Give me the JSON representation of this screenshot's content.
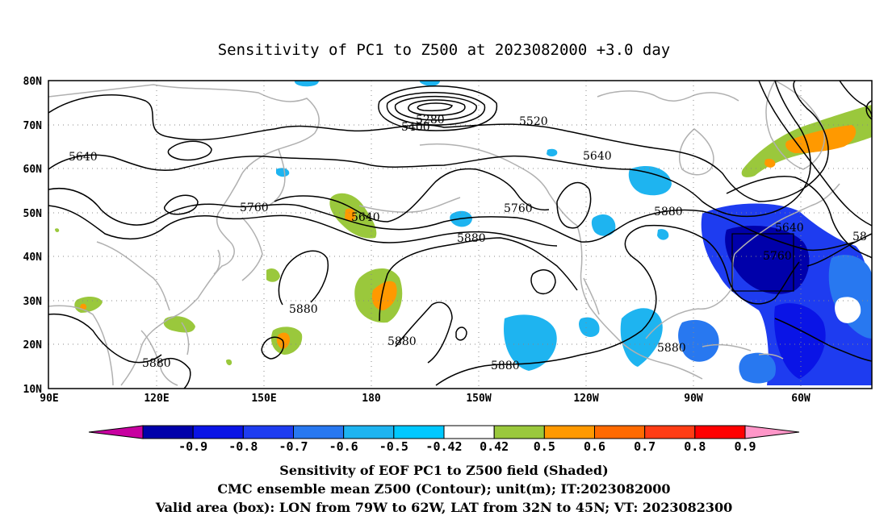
{
  "title": "Sensitivity of PC1 to Z500 at 2023082000 +3.0 day",
  "map": {
    "lon_labels": [
      "90E",
      "120E",
      "150E",
      "180",
      "150W",
      "120W",
      "90W",
      "60W"
    ],
    "lat_labels": [
      "80N",
      "70N",
      "60N",
      "50N",
      "40N",
      "30N",
      "20N",
      "10N"
    ],
    "contour_labels": [
      "5280",
      "5400",
      "5520",
      "5640",
      "5640",
      "5640",
      "5640",
      "5760",
      "5760",
      "5760",
      "5880",
      "5880",
      "5880",
      "5880",
      "5880",
      "5880",
      "5880",
      "58"
    ],
    "box_label": "Valid area box 79W-62W, 32N-45N"
  },
  "colorbar": {
    "ticks": [
      "-0.9",
      "-0.8",
      "-0.7",
      "-0.6",
      "-0.5",
      "-0.42",
      "0.42",
      "0.5",
      "0.6",
      "0.7",
      "0.8",
      "0.9"
    ],
    "colors": [
      "#c800a0",
      "#0000aa",
      "#0a14e6",
      "#1e3cf0",
      "#2878f0",
      "#1eb4f0",
      "#00c8ff",
      "#ffffff",
      "#9ac83c",
      "#ff9900",
      "#ff6a00",
      "#ff3c14",
      "#ff0000",
      "#ff96c8"
    ]
  },
  "caption": {
    "line1": "Sensitivity of EOF PC1 to Z500 field (Shaded)",
    "line2": "CMC ensemble mean Z500 (Contour); unit(m); IT:2023082000",
    "line3": "Valid area (box): LON from 79W to 62W, LAT from 32N to 45N; VT: 2023082300"
  }
}
